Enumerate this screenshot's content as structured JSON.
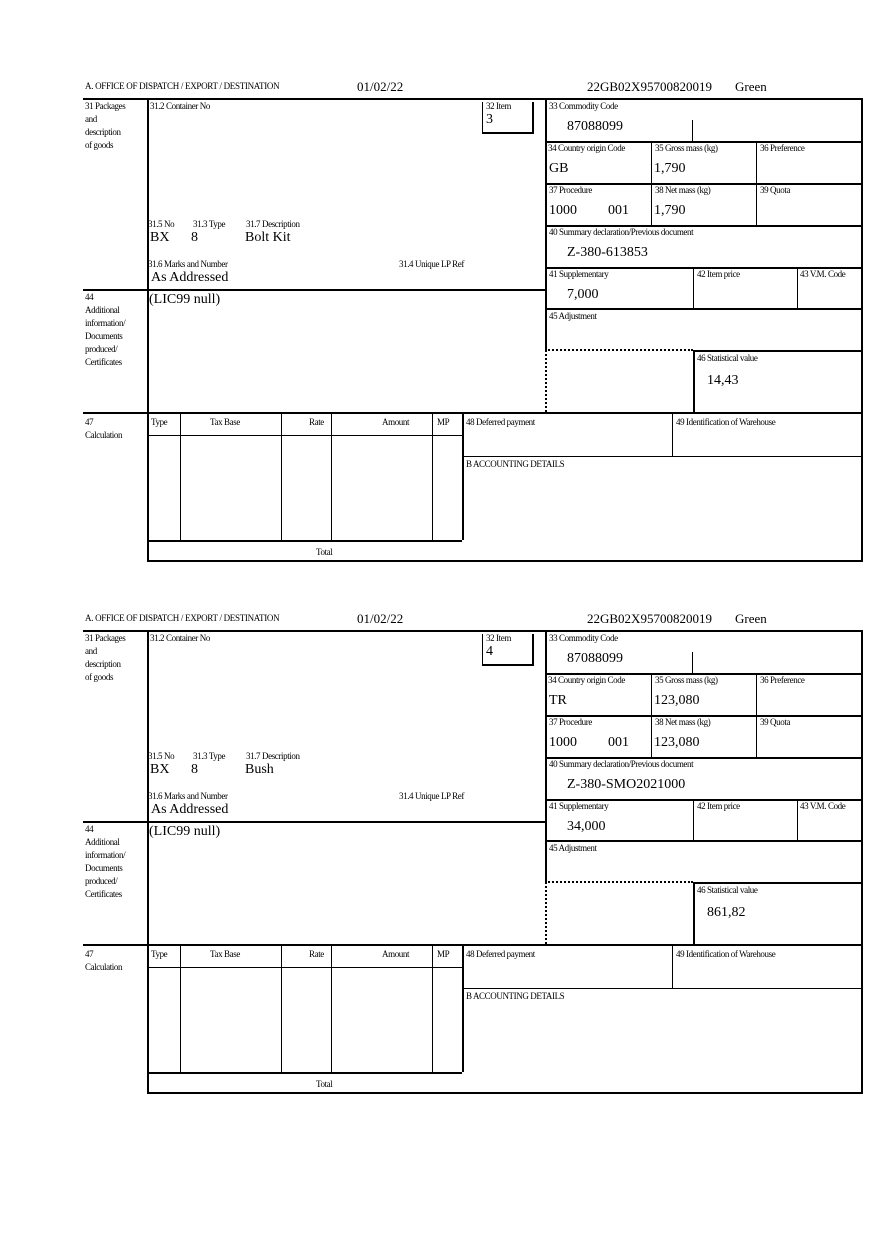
{
  "labels": {
    "office": "A.  OFFICE OF DISPATCH / EXPORT / DESTINATION",
    "packages": [
      "31 Packages",
      "and",
      "description",
      "of goods"
    ],
    "container_no": "31.2 Container No",
    "item": "32 Item",
    "commodity_code": "33 Commodity Code",
    "country_origin": "34 Country origin Code",
    "gross_mass": "35 Gross mass (kg)",
    "preference": "36 Preference",
    "procedure": "37 Procedure",
    "net_mass": "38 Net mass (kg)",
    "quota": "39 Quota",
    "summary_declaration": "40 Summary declaration/Previous document",
    "supplementary": "41 Supplementary",
    "item_price": "42 Item price",
    "vm_code": "43 V.M. Code",
    "adjustment": "45 Adjustment",
    "statistical_value": "46 Statistical value",
    "no": "31.5 No",
    "type": "31.3 Type",
    "description": "31.7 Description",
    "marks": "31.6 Marks and Number",
    "unique_lp_ref": "31.4 Unique LP Ref",
    "additional_info": [
      "44",
      "Additional",
      "information/",
      "Documents",
      "produced/",
      "Certificates"
    ],
    "calculation": [
      "47",
      "Calculation"
    ],
    "calc_type": "Type",
    "calc_tax_base": "Tax Base",
    "calc_rate": "Rate",
    "calc_amount": "Amount",
    "calc_mp": "MP",
    "deferred_payment": "48 Deferred payment",
    "warehouse": "49 Identification of Warehouse",
    "accounting": "B ACCOUNTING DETAILS",
    "total": "Total"
  },
  "forms": [
    {
      "date": "01/02/22",
      "reference": "22GB02X95700820019",
      "route": "Green",
      "item": "3",
      "commodity_code": "87088099",
      "country_origin": "GB",
      "gross_mass": "1,790",
      "procedure_code": "1000",
      "procedure_suffix": "001",
      "net_mass": "1,790",
      "summary_declaration": "Z-380-613853",
      "supplementary": "7,000",
      "statistical_value": "14,43",
      "no": "BX",
      "type": "8",
      "description": "Bolt Kit",
      "marks": "As Addressed",
      "additional_info": "(LIC99 null)"
    },
    {
      "date": "01/02/22",
      "reference": "22GB02X95700820019",
      "route": "Green",
      "item": "4",
      "commodity_code": "87088099",
      "country_origin": "TR",
      "gross_mass": "123,080",
      "procedure_code": "1000",
      "procedure_suffix": "001",
      "net_mass": "123,080",
      "summary_declaration": "Z-380-SMO2021000",
      "supplementary": "34,000",
      "statistical_value": "861,82",
      "no": "BX",
      "type": "8",
      "description": "Bush",
      "marks": "As Addressed",
      "additional_info": "(LIC99 null)"
    }
  ]
}
